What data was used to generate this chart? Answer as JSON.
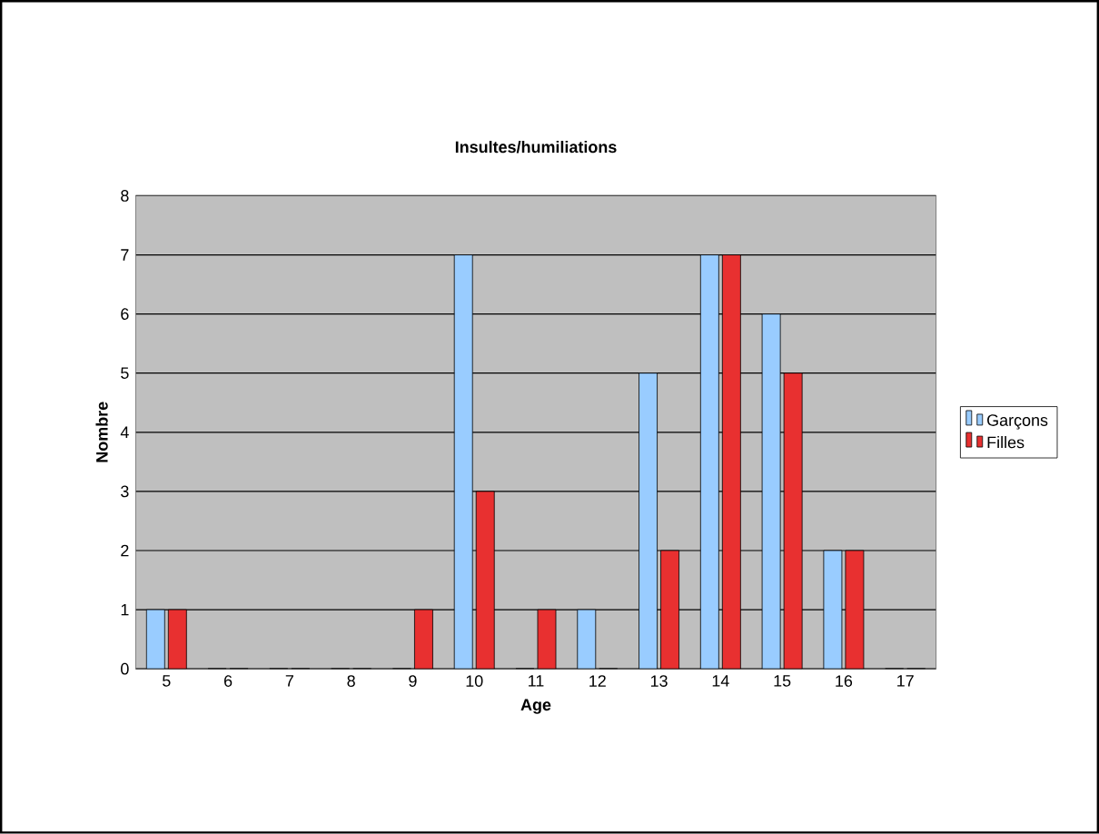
{
  "chart_data": {
    "type": "bar",
    "title": "Insultes/humiliations",
    "xlabel": "Age",
    "ylabel": "Nombre",
    "categories": [
      "5",
      "6",
      "7",
      "8",
      "9",
      "10",
      "11",
      "12",
      "13",
      "14",
      "15",
      "16",
      "17"
    ],
    "series": [
      {
        "name": "Garçons",
        "color": "#99ccff",
        "values": [
          1,
          0,
          0,
          0,
          0,
          7,
          0,
          1,
          5,
          7,
          6,
          2,
          0
        ]
      },
      {
        "name": "Filles",
        "color": "#e83030",
        "values": [
          1,
          0,
          0,
          0,
          1,
          3,
          1,
          0,
          2,
          7,
          5,
          2,
          0
        ]
      }
    ],
    "ylim": [
      0,
      8
    ],
    "yticks": [
      0,
      1,
      2,
      3,
      4,
      5,
      6,
      7,
      8
    ],
    "grid": "y",
    "legend": "right"
  }
}
